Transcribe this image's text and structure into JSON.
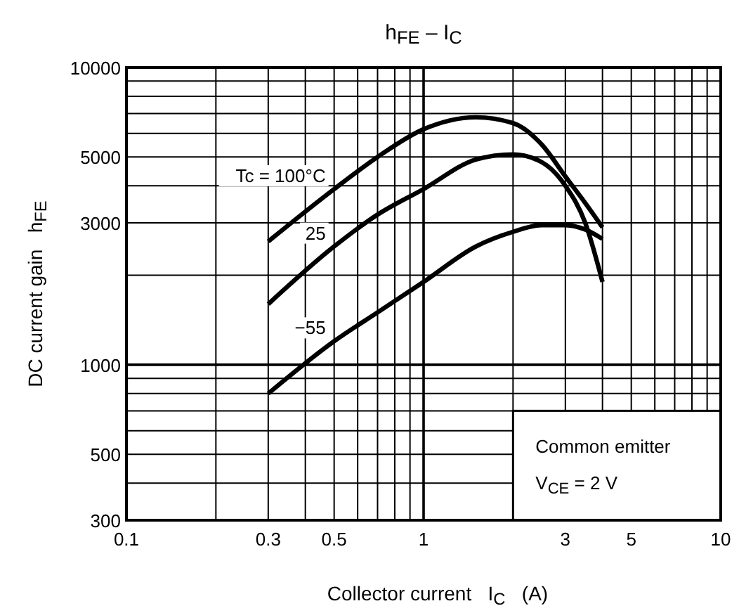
{
  "chart_data": {
    "type": "line",
    "title": "h$_{FE}$ – I$_{C}$",
    "xlabel": "Collector current   I$_{C}$   (A)",
    "ylabel": "DC current gain   h$_{FE}$",
    "log": "xy",
    "grid": true,
    "marker": "none",
    "line_style": "solid",
    "xlim": [
      0.1,
      10
    ],
    "ylim": [
      300,
      10000
    ],
    "xticks": [
      0.1,
      {
        "value": 0.2,
        "label": null
      },
      0.3,
      {
        "value": 0.4,
        "label": null
      },
      0.5,
      {
        "value": 0.6,
        "label": null
      },
      {
        "value": 0.7,
        "label": null
      },
      {
        "value": 0.8,
        "label": null
      },
      {
        "value": 0.9,
        "label": null
      },
      1,
      {
        "value": 2,
        "label": null
      },
      3,
      {
        "value": 4,
        "label": null
      },
      5,
      {
        "value": 6,
        "label": null
      },
      {
        "value": 7,
        "label": null
      },
      {
        "value": 8,
        "label": null
      },
      {
        "value": 9,
        "label": null
      },
      10
    ],
    "yticks": [
      300,
      {
        "value": 400,
        "label": null
      },
      500,
      {
        "value": 600,
        "label": null
      },
      {
        "value": 700,
        "label": null
      },
      {
        "value": 800,
        "label": null
      },
      {
        "value": 900,
        "label": null
      },
      1000,
      {
        "value": 2000,
        "label": null
      },
      3000,
      {
        "value": 4000,
        "label": null
      },
      5000,
      {
        "value": 6000,
        "label": null
      },
      {
        "value": 7000,
        "label": null
      },
      {
        "value": 8000,
        "label": null
      },
      {
        "value": 9000,
        "label": null
      },
      10000
    ],
    "series": [
      {
        "name": "Tc = 100°C",
        "color": "#000000",
        "x": [
          0.3,
          0.5,
          0.7,
          1,
          1.5,
          2,
          2.5,
          3,
          3.5,
          4
        ],
        "values": [
          2600,
          3900,
          5000,
          6200,
          6800,
          6500,
          5500,
          4300,
          3500,
          2900
        ]
      },
      {
        "name": "25",
        "color": "#000000",
        "x": [
          0.3,
          0.5,
          0.7,
          1,
          1.5,
          2,
          2.5,
          3,
          3.5,
          4
        ],
        "values": [
          1600,
          2500,
          3200,
          3900,
          4900,
          5100,
          4800,
          4000,
          3000,
          1900
        ]
      },
      {
        "name": "−55",
        "color": "#000000",
        "x": [
          0.3,
          0.5,
          0.7,
          1,
          1.5,
          2,
          2.5,
          3,
          3.5,
          4
        ],
        "values": [
          800,
          1200,
          1500,
          1900,
          2500,
          2800,
          2950,
          2950,
          2850,
          2650
        ]
      }
    ],
    "annotations": [
      "Common emitter",
      "V$_{CE}$ = 2 V"
    ]
  }
}
